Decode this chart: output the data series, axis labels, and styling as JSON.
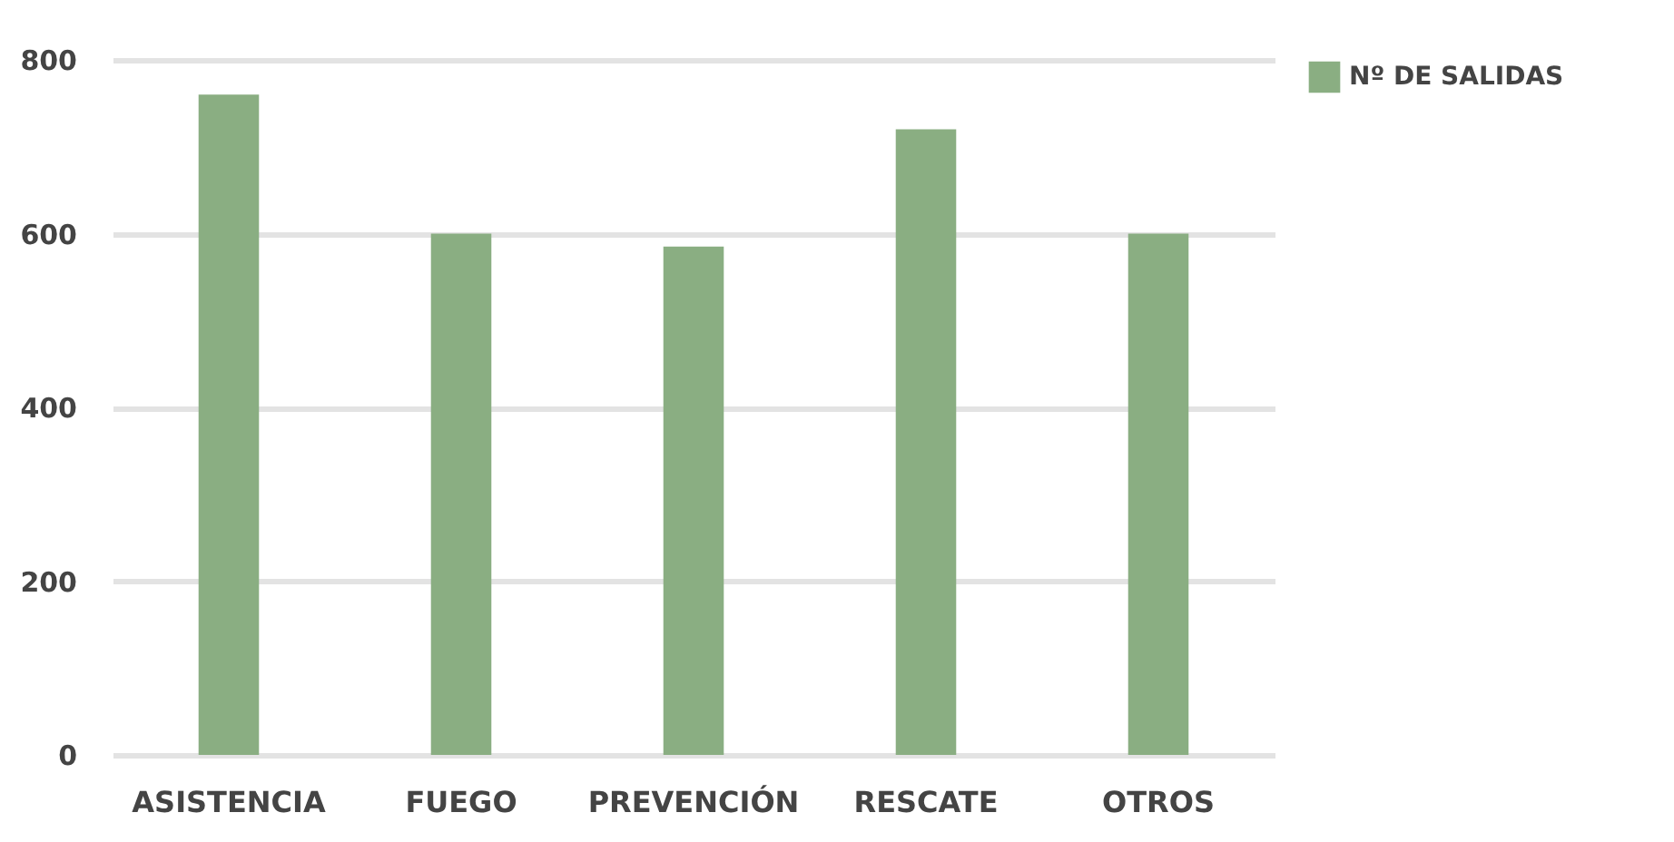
{
  "chart_data": {
    "type": "bar",
    "categories": [
      "ASISTENCIA",
      "FUEGO",
      "PREVENCIÓN",
      "RESCATE",
      "OTROS"
    ],
    "series": [
      {
        "name": "Nº DE SALIDAS",
        "color": "#8aae82",
        "values": [
          760,
          600,
          585,
          720,
          600
        ]
      }
    ],
    "ylim": [
      0,
      800
    ],
    "yticks": [
      0,
      200,
      400,
      600,
      800
    ],
    "grid": "y",
    "legend": "right"
  }
}
